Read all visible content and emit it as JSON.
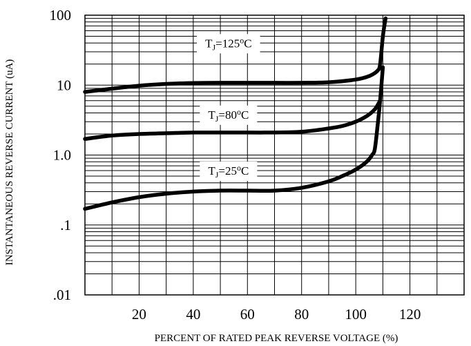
{
  "chart_data": {
    "type": "line",
    "title": "",
    "xlabel": "PERCENT OF RATED PEAK REVERSE VOLTAGE (%)",
    "ylabel": "INSTANTANEOUS REVERSE CURRENT (uA)",
    "xlim": [
      0,
      140
    ],
    "ylim": [
      0.01,
      100
    ],
    "y_scale": "log",
    "grid": true,
    "x_ticks": [
      {
        "value": 20,
        "label": "20"
      },
      {
        "value": 40,
        "label": "40"
      },
      {
        "value": 60,
        "label": "60"
      },
      {
        "value": 80,
        "label": "80"
      },
      {
        "value": 100,
        "label": "100"
      },
      {
        "value": 120,
        "label": "120"
      }
    ],
    "y_ticks": [
      {
        "value": 100,
        "label": "100"
      },
      {
        "value": 10,
        "label": "10"
      },
      {
        "value": 1,
        "label": "1.0"
      },
      {
        "value": 0.1,
        "label": ".1"
      },
      {
        "value": 0.01,
        "label": ".01"
      }
    ],
    "series": [
      {
        "label_parts": {
          "t": "T",
          "sub": "J",
          "rest": "=125",
          "deg": "o",
          "unit": "C"
        },
        "label_at": [
          53,
          40
        ],
        "x": [
          0,
          10,
          20,
          30,
          40,
          50,
          60,
          70,
          80,
          90,
          100,
          105,
          108,
          109,
          110,
          111
        ],
        "y": [
          8.0,
          8.9,
          9.8,
          10.4,
          10.7,
          10.8,
          10.8,
          10.8,
          10.8,
          11.0,
          12.0,
          13.5,
          16.0,
          20,
          50,
          90
        ]
      },
      {
        "label_parts": {
          "t": "T",
          "sub": "J",
          "rest": "=80",
          "deg": "o",
          "unit": "C"
        },
        "label_at": [
          53,
          3.8
        ],
        "x": [
          0,
          10,
          20,
          30,
          40,
          50,
          60,
          70,
          80,
          90,
          95,
          100,
          104,
          107,
          109
        ],
        "y": [
          1.7,
          1.9,
          2.0,
          2.05,
          2.1,
          2.1,
          2.1,
          2.1,
          2.15,
          2.4,
          2.6,
          3.0,
          3.6,
          4.5,
          6.0
        ]
      },
      {
        "label_parts": {
          "t": "T",
          "sub": "J",
          "rest": "=25",
          "deg": "o",
          "unit": "C"
        },
        "label_at": [
          53,
          0.6
        ],
        "x": [
          0,
          10,
          20,
          30,
          40,
          50,
          60,
          70,
          80,
          90,
          95,
          100,
          104,
          106,
          107,
          108,
          109,
          110
        ],
        "y": [
          0.17,
          0.21,
          0.25,
          0.28,
          0.3,
          0.31,
          0.31,
          0.31,
          0.34,
          0.42,
          0.5,
          0.62,
          0.8,
          1.0,
          1.2,
          2.5,
          6.0,
          18
        ]
      }
    ]
  }
}
